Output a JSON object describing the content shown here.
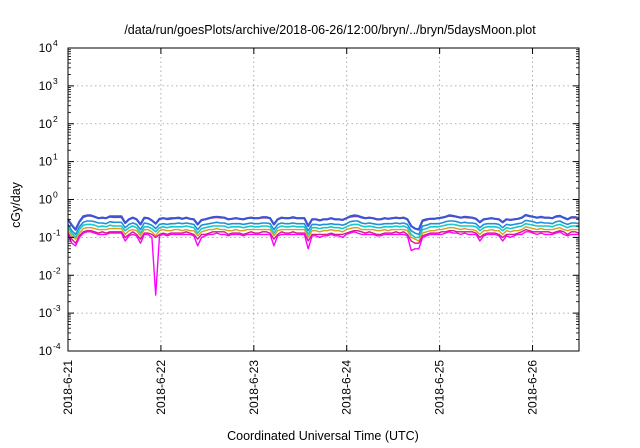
{
  "chart_data": {
    "type": "line",
    "title": "/data/run/goesPlots/archive/2018-06-26/12:00/bryn/../bryn/5daysMoon.plot",
    "xlabel": "Coordinated Universal Time (UTC)",
    "ylabel": "cGy/day",
    "yscale": "log",
    "ylim": [
      0.0001,
      10000
    ],
    "xlim": [
      0,
      5.5
    ],
    "x_origin": "2018-6-21",
    "x_unit": "days",
    "y_ticks": [
      {
        "base": "10",
        "exp": "4"
      },
      {
        "base": "10",
        "exp": "3"
      },
      {
        "base": "10",
        "exp": "2"
      },
      {
        "base": "10",
        "exp": "1"
      },
      {
        "base": "10",
        "exp": "0"
      },
      {
        "base": "10",
        "exp": "-1"
      },
      {
        "base": "10",
        "exp": "-2"
      },
      {
        "base": "10",
        "exp": "-3"
      },
      {
        "base": "10",
        "exp": "-4"
      }
    ],
    "x_ticks": [
      "2018-6-21",
      "2018-6-22",
      "2018-6-23",
      "2018-6-24",
      "2018-6-25",
      "2018-6-26"
    ],
    "grid": true,
    "series": [
      {
        "color": "#e8202a",
        "values": [
          0.3,
          0.21,
          0.16,
          0.26,
          0.34,
          0.37,
          0.37,
          0.35,
          0.32,
          0.33,
          0.32,
          0.35,
          0.34,
          0.34,
          0.34,
          0.24,
          0.3,
          0.33,
          0.3,
          0.22,
          0.32,
          0.32,
          0.28,
          0.23,
          0.3,
          0.32,
          0.3,
          0.31,
          0.32,
          0.32,
          0.31,
          0.33,
          0.31,
          0.3,
          0.22,
          0.28,
          0.3,
          0.32,
          0.33,
          0.34,
          0.33,
          0.33,
          0.3,
          0.31,
          0.32,
          0.31,
          0.3,
          0.32,
          0.33,
          0.32,
          0.32,
          0.33,
          0.33,
          0.32,
          0.22,
          0.3,
          0.33,
          0.32,
          0.32,
          0.33,
          0.32,
          0.32,
          0.32,
          0.2,
          0.3,
          0.3,
          0.28,
          0.3,
          0.3,
          0.32,
          0.3,
          0.3,
          0.29,
          0.32,
          0.35,
          0.36,
          0.36,
          0.33,
          0.32,
          0.33,
          0.32,
          0.3,
          0.3,
          0.32,
          0.31,
          0.32,
          0.33,
          0.32,
          0.33,
          0.3,
          0.2,
          0.17,
          0.16,
          0.27,
          0.29,
          0.31,
          0.31,
          0.32,
          0.33,
          0.35,
          0.37,
          0.36,
          0.35,
          0.33,
          0.34,
          0.33,
          0.33,
          0.31,
          0.25,
          0.3,
          0.31,
          0.32,
          0.31,
          0.3,
          0.25,
          0.3,
          0.29,
          0.3,
          0.31,
          0.33,
          0.38,
          0.36,
          0.35,
          0.33,
          0.34,
          0.33,
          0.33,
          0.32,
          0.35,
          0.36,
          0.33,
          0.3,
          0.33,
          0.33,
          0.32
        ]
      },
      {
        "color": "#3a55d8",
        "values": [
          0.3,
          0.21,
          0.16,
          0.26,
          0.36,
          0.38,
          0.38,
          0.35,
          0.32,
          0.33,
          0.32,
          0.36,
          0.36,
          0.36,
          0.36,
          0.24,
          0.3,
          0.33,
          0.3,
          0.22,
          0.33,
          0.32,
          0.28,
          0.23,
          0.31,
          0.32,
          0.31,
          0.32,
          0.32,
          0.33,
          0.31,
          0.33,
          0.31,
          0.3,
          0.22,
          0.29,
          0.3,
          0.32,
          0.34,
          0.35,
          0.34,
          0.33,
          0.3,
          0.31,
          0.32,
          0.31,
          0.3,
          0.32,
          0.33,
          0.32,
          0.32,
          0.34,
          0.34,
          0.32,
          0.22,
          0.3,
          0.33,
          0.32,
          0.32,
          0.34,
          0.32,
          0.32,
          0.32,
          0.2,
          0.3,
          0.3,
          0.28,
          0.3,
          0.3,
          0.32,
          0.3,
          0.3,
          0.29,
          0.32,
          0.36,
          0.38,
          0.37,
          0.34,
          0.32,
          0.33,
          0.32,
          0.3,
          0.3,
          0.32,
          0.31,
          0.32,
          0.33,
          0.32,
          0.33,
          0.3,
          0.2,
          0.17,
          0.16,
          0.28,
          0.3,
          0.31,
          0.31,
          0.32,
          0.33,
          0.35,
          0.38,
          0.37,
          0.35,
          0.33,
          0.35,
          0.34,
          0.33,
          0.31,
          0.25,
          0.3,
          0.31,
          0.32,
          0.31,
          0.3,
          0.25,
          0.3,
          0.29,
          0.3,
          0.31,
          0.33,
          0.39,
          0.37,
          0.35,
          0.33,
          0.35,
          0.33,
          0.33,
          0.32,
          0.36,
          0.37,
          0.33,
          0.3,
          0.34,
          0.34,
          0.32
        ]
      },
      {
        "color": "#1e90d8",
        "values": [
          0.22,
          0.15,
          0.12,
          0.19,
          0.25,
          0.27,
          0.27,
          0.26,
          0.24,
          0.24,
          0.23,
          0.26,
          0.25,
          0.25,
          0.25,
          0.18,
          0.22,
          0.24,
          0.22,
          0.16,
          0.24,
          0.23,
          0.21,
          0.17,
          0.22,
          0.23,
          0.22,
          0.23,
          0.23,
          0.24,
          0.23,
          0.24,
          0.23,
          0.22,
          0.16,
          0.21,
          0.22,
          0.23,
          0.24,
          0.25,
          0.24,
          0.24,
          0.22,
          0.23,
          0.23,
          0.23,
          0.22,
          0.23,
          0.24,
          0.23,
          0.23,
          0.24,
          0.24,
          0.23,
          0.16,
          0.22,
          0.24,
          0.23,
          0.23,
          0.24,
          0.23,
          0.23,
          0.23,
          0.15,
          0.22,
          0.22,
          0.21,
          0.22,
          0.22,
          0.23,
          0.22,
          0.22,
          0.21,
          0.23,
          0.26,
          0.27,
          0.27,
          0.24,
          0.23,
          0.24,
          0.23,
          0.22,
          0.22,
          0.23,
          0.23,
          0.23,
          0.24,
          0.23,
          0.24,
          0.22,
          0.15,
          0.13,
          0.12,
          0.2,
          0.21,
          0.23,
          0.23,
          0.23,
          0.24,
          0.26,
          0.27,
          0.27,
          0.26,
          0.24,
          0.25,
          0.24,
          0.24,
          0.23,
          0.18,
          0.22,
          0.23,
          0.23,
          0.23,
          0.22,
          0.18,
          0.22,
          0.21,
          0.22,
          0.23,
          0.24,
          0.28,
          0.27,
          0.26,
          0.24,
          0.25,
          0.24,
          0.24,
          0.23,
          0.26,
          0.27,
          0.24,
          0.22,
          0.24,
          0.24,
          0.23
        ]
      },
      {
        "color": "#19c9c9",
        "values": [
          0.18,
          0.13,
          0.1,
          0.16,
          0.21,
          0.22,
          0.22,
          0.21,
          0.19,
          0.2,
          0.19,
          0.21,
          0.2,
          0.2,
          0.2,
          0.15,
          0.18,
          0.2,
          0.18,
          0.13,
          0.19,
          0.19,
          0.17,
          0.14,
          0.18,
          0.19,
          0.18,
          0.19,
          0.19,
          0.19,
          0.19,
          0.2,
          0.19,
          0.18,
          0.13,
          0.17,
          0.18,
          0.19,
          0.2,
          0.2,
          0.2,
          0.2,
          0.18,
          0.19,
          0.19,
          0.19,
          0.18,
          0.19,
          0.2,
          0.19,
          0.19,
          0.2,
          0.2,
          0.19,
          0.13,
          0.18,
          0.2,
          0.19,
          0.19,
          0.2,
          0.19,
          0.19,
          0.19,
          0.12,
          0.18,
          0.18,
          0.17,
          0.18,
          0.18,
          0.19,
          0.18,
          0.18,
          0.17,
          0.19,
          0.21,
          0.22,
          0.22,
          0.2,
          0.19,
          0.2,
          0.19,
          0.18,
          0.18,
          0.19,
          0.19,
          0.19,
          0.2,
          0.19,
          0.2,
          0.18,
          0.12,
          0.1,
          0.1,
          0.16,
          0.17,
          0.19,
          0.19,
          0.19,
          0.2,
          0.21,
          0.22,
          0.22,
          0.21,
          0.2,
          0.2,
          0.2,
          0.2,
          0.19,
          0.15,
          0.18,
          0.19,
          0.19,
          0.19,
          0.18,
          0.15,
          0.18,
          0.17,
          0.18,
          0.19,
          0.2,
          0.23,
          0.22,
          0.21,
          0.2,
          0.2,
          0.2,
          0.2,
          0.19,
          0.21,
          0.22,
          0.2,
          0.18,
          0.2,
          0.2,
          0.19
        ]
      },
      {
        "color": "#d4a020",
        "values": [
          0.15,
          0.11,
          0.09,
          0.13,
          0.17,
          0.18,
          0.18,
          0.17,
          0.16,
          0.16,
          0.16,
          0.17,
          0.17,
          0.17,
          0.17,
          0.12,
          0.15,
          0.16,
          0.15,
          0.11,
          0.16,
          0.16,
          0.14,
          0.11,
          0.15,
          0.16,
          0.15,
          0.15,
          0.16,
          0.16,
          0.15,
          0.16,
          0.15,
          0.15,
          0.11,
          0.14,
          0.15,
          0.16,
          0.16,
          0.17,
          0.16,
          0.16,
          0.15,
          0.15,
          0.16,
          0.15,
          0.15,
          0.16,
          0.16,
          0.16,
          0.16,
          0.16,
          0.16,
          0.16,
          0.11,
          0.15,
          0.16,
          0.16,
          0.16,
          0.16,
          0.16,
          0.16,
          0.16,
          0.1,
          0.15,
          0.15,
          0.14,
          0.15,
          0.15,
          0.16,
          0.15,
          0.15,
          0.14,
          0.16,
          0.17,
          0.18,
          0.18,
          0.16,
          0.16,
          0.16,
          0.16,
          0.15,
          0.15,
          0.16,
          0.15,
          0.16,
          0.16,
          0.16,
          0.16,
          0.15,
          0.1,
          0.09,
          0.08,
          0.13,
          0.14,
          0.15,
          0.15,
          0.16,
          0.16,
          0.17,
          0.18,
          0.18,
          0.17,
          0.16,
          0.17,
          0.16,
          0.16,
          0.15,
          0.12,
          0.15,
          0.15,
          0.16,
          0.15,
          0.15,
          0.12,
          0.15,
          0.14,
          0.15,
          0.15,
          0.16,
          0.19,
          0.18,
          0.17,
          0.16,
          0.17,
          0.16,
          0.16,
          0.16,
          0.17,
          0.18,
          0.16,
          0.15,
          0.16,
          0.16,
          0.16
        ]
      },
      {
        "color": "#d11a8a",
        "values": [
          0.13,
          0.09,
          0.07,
          0.11,
          0.14,
          0.15,
          0.15,
          0.14,
          0.13,
          0.14,
          0.13,
          0.14,
          0.14,
          0.14,
          0.14,
          0.1,
          0.12,
          0.14,
          0.12,
          0.09,
          0.13,
          0.13,
          0.12,
          0.1,
          0.12,
          0.13,
          0.12,
          0.13,
          0.13,
          0.13,
          0.13,
          0.14,
          0.13,
          0.12,
          0.09,
          0.12,
          0.12,
          0.13,
          0.14,
          0.14,
          0.14,
          0.14,
          0.12,
          0.13,
          0.13,
          0.13,
          0.12,
          0.13,
          0.14,
          0.13,
          0.13,
          0.14,
          0.14,
          0.13,
          0.09,
          0.12,
          0.14,
          0.13,
          0.13,
          0.14,
          0.13,
          0.13,
          0.13,
          0.08,
          0.12,
          0.12,
          0.12,
          0.12,
          0.12,
          0.13,
          0.12,
          0.12,
          0.12,
          0.13,
          0.14,
          0.15,
          0.15,
          0.14,
          0.13,
          0.14,
          0.13,
          0.12,
          0.12,
          0.13,
          0.13,
          0.13,
          0.14,
          0.13,
          0.14,
          0.12,
          0.08,
          0.07,
          0.07,
          0.11,
          0.12,
          0.13,
          0.13,
          0.13,
          0.14,
          0.14,
          0.15,
          0.15,
          0.14,
          0.14,
          0.14,
          0.14,
          0.14,
          0.13,
          0.1,
          0.12,
          0.13,
          0.13,
          0.13,
          0.12,
          0.1,
          0.12,
          0.12,
          0.12,
          0.13,
          0.14,
          0.16,
          0.15,
          0.14,
          0.14,
          0.14,
          0.14,
          0.14,
          0.13,
          0.14,
          0.15,
          0.14,
          0.12,
          0.14,
          0.14,
          0.13
        ]
      },
      {
        "color": "#ff00ff",
        "values": [
          0.12,
          0.07,
          0.06,
          0.1,
          0.13,
          0.14,
          0.14,
          0.13,
          0.12,
          0.12,
          0.12,
          0.13,
          0.13,
          0.13,
          0.13,
          0.08,
          0.11,
          0.12,
          0.11,
          0.07,
          0.12,
          0.12,
          0.1,
          0.003,
          0.11,
          0.12,
          0.11,
          0.12,
          0.12,
          0.12,
          0.12,
          0.12,
          0.12,
          0.11,
          0.06,
          0.1,
          0.11,
          0.12,
          0.12,
          0.13,
          0.12,
          0.12,
          0.11,
          0.12,
          0.12,
          0.12,
          0.11,
          0.12,
          0.12,
          0.12,
          0.12,
          0.12,
          0.12,
          0.12,
          0.06,
          0.11,
          0.12,
          0.12,
          0.12,
          0.12,
          0.12,
          0.12,
          0.12,
          0.05,
          0.11,
          0.11,
          0.1,
          0.11,
          0.11,
          0.12,
          0.11,
          0.11,
          0.1,
          0.12,
          0.13,
          0.14,
          0.13,
          0.12,
          0.12,
          0.12,
          0.12,
          0.11,
          0.11,
          0.12,
          0.12,
          0.12,
          0.12,
          0.12,
          0.12,
          0.11,
          0.045,
          0.05,
          0.05,
          0.1,
          0.11,
          0.12,
          0.12,
          0.12,
          0.12,
          0.13,
          0.14,
          0.13,
          0.13,
          0.12,
          0.13,
          0.12,
          0.12,
          0.12,
          0.08,
          0.11,
          0.12,
          0.12,
          0.12,
          0.11,
          0.08,
          0.11,
          0.1,
          0.11,
          0.12,
          0.12,
          0.14,
          0.14,
          0.13,
          0.12,
          0.13,
          0.12,
          0.12,
          0.12,
          0.13,
          0.14,
          0.12,
          0.11,
          0.12,
          0.12,
          0.12
        ]
      }
    ]
  }
}
